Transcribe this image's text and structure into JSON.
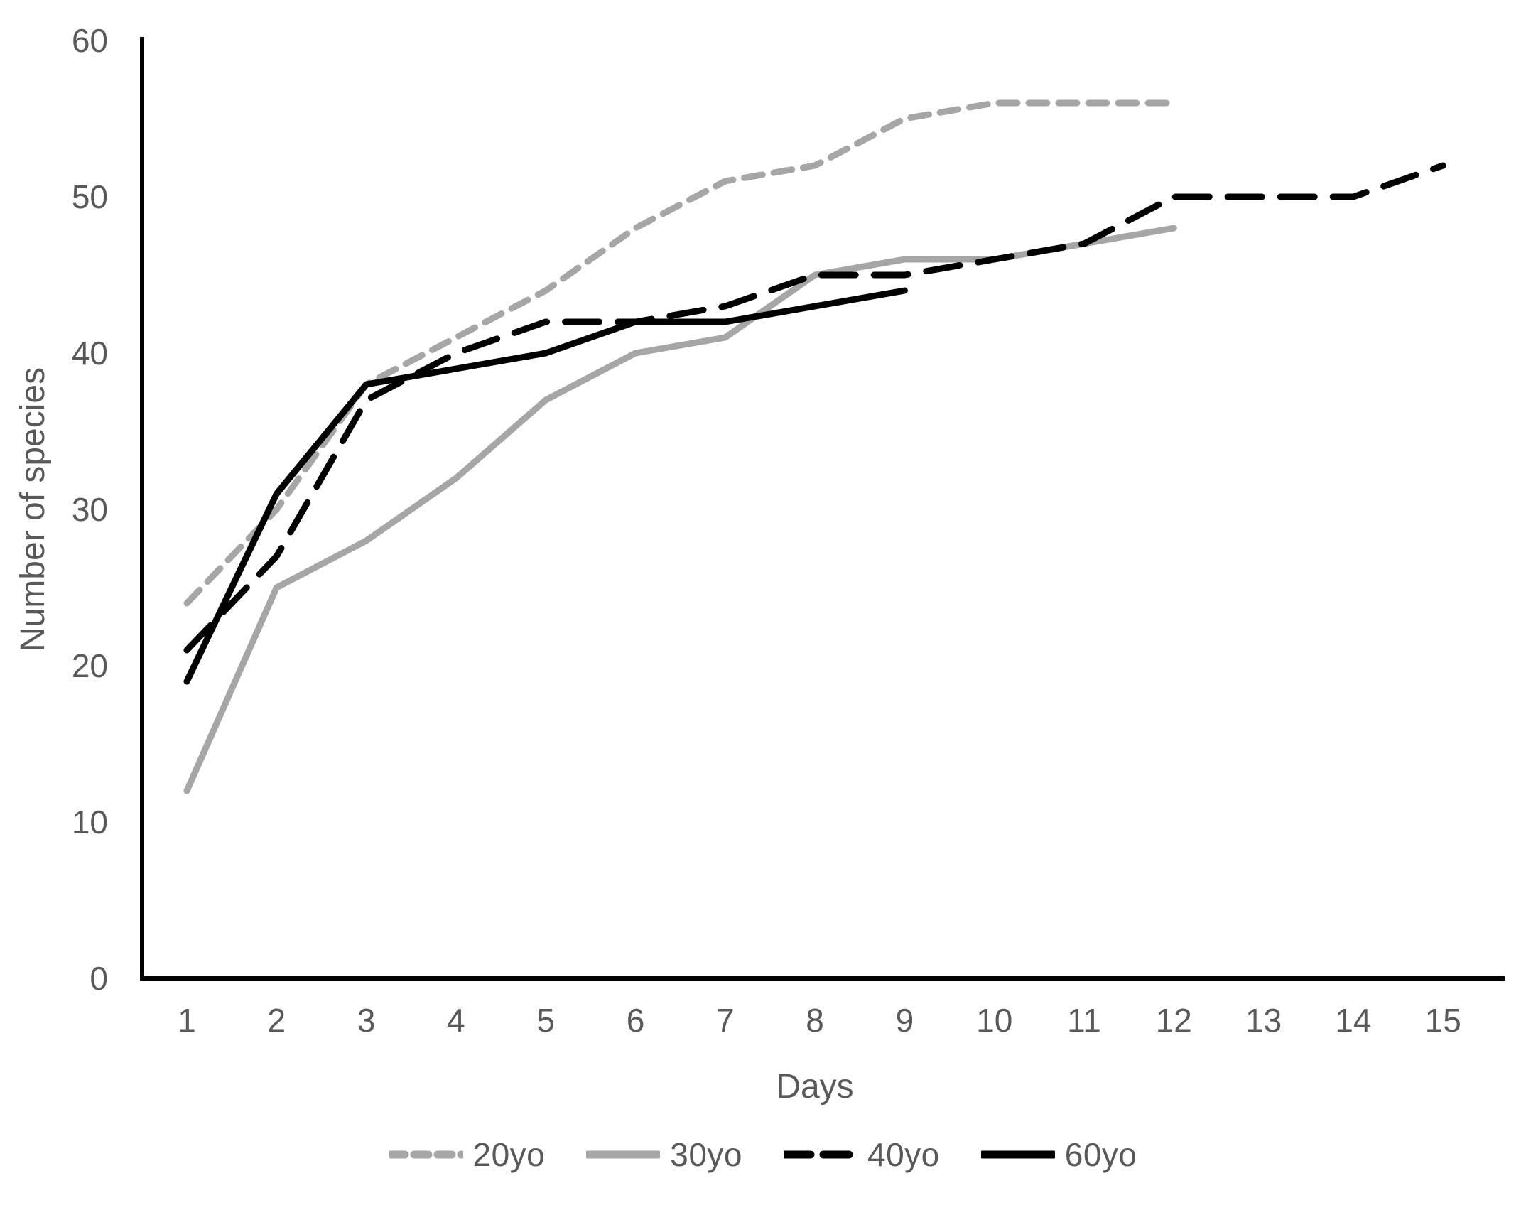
{
  "chart_data": {
    "type": "line",
    "title": "",
    "xlabel": "Days",
    "ylabel": "Number of species",
    "x": [
      1,
      2,
      3,
      4,
      5,
      6,
      7,
      8,
      9,
      10,
      11,
      12,
      13,
      14,
      15
    ],
    "x_tick_labels": [
      "1",
      "2",
      "3",
      "4",
      "5",
      "6",
      "7",
      "8",
      "9",
      "10",
      "11",
      "12",
      "13",
      "14",
      "15"
    ],
    "y_ticks": [
      0,
      10,
      20,
      30,
      40,
      50,
      60
    ],
    "ylim": [
      0,
      60
    ],
    "grid": "off",
    "legend_position": "bottom-center",
    "series": [
      {
        "name": "20yo",
        "color": "#a6a6a6",
        "style": "dashed",
        "dash": "26 16",
        "values": [
          24,
          30,
          38,
          41,
          44,
          48,
          51,
          52,
          55,
          56,
          56,
          56,
          null,
          null,
          null
        ]
      },
      {
        "name": "30yo",
        "color": "#a6a6a6",
        "style": "solid",
        "dash": "",
        "values": [
          12,
          25,
          28,
          32,
          37,
          40,
          41,
          45,
          46,
          46,
          47,
          48,
          null,
          null,
          null
        ]
      },
      {
        "name": "40yo",
        "color": "#000000",
        "style": "dashed",
        "dash": "48 26",
        "values": [
          21,
          27,
          37,
          40,
          42,
          42,
          43,
          45,
          45,
          46,
          47,
          50,
          50,
          50,
          52
        ]
      },
      {
        "name": "60yo",
        "color": "#000000",
        "style": "solid",
        "dash": "",
        "values": [
          19,
          31,
          38,
          39,
          40,
          42,
          42,
          43,
          44,
          null,
          null,
          null,
          null,
          null,
          null
        ]
      }
    ],
    "axis_color": "#000000",
    "tick_label_color": "#595959"
  },
  "legend": {
    "items": [
      {
        "label": "20yo",
        "color": "#a6a6a6",
        "dash": "20 13"
      },
      {
        "label": "30yo",
        "color": "#a6a6a6",
        "dash": ""
      },
      {
        "label": "40yo",
        "color": "#000000",
        "dash": "36 18"
      },
      {
        "label": "60yo",
        "color": "#000000",
        "dash": ""
      }
    ]
  }
}
